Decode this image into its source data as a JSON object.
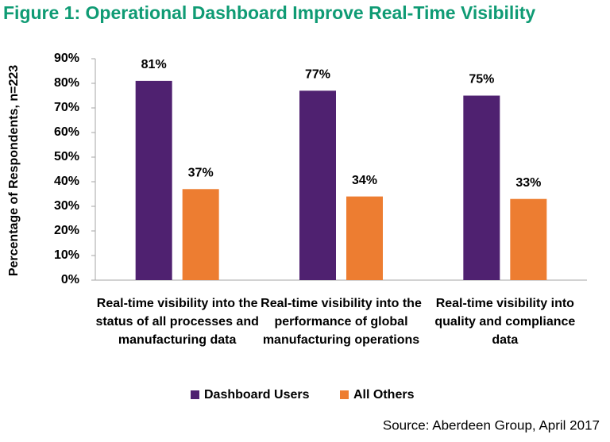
{
  "chart_data": {
    "type": "bar",
    "title": "Figure 1: Operational Dashboard Improve Real-Time Visibility",
    "y_label": "Percentage of Respondents, n=223",
    "source": "Source: Aberdeen Group, April 2017",
    "categories": [
      "Real-time visibility into the status of all processes and manufacturing data",
      "Real-time visibility into the performance of global manufacturing operations",
      "Real-time visibility into quality and compliance data"
    ],
    "series": [
      {
        "name": "Dashboard Users",
        "color": "#4f2170",
        "values": [
          81,
          77,
          75
        ],
        "value_labels": [
          "81%",
          "77%",
          "75%"
        ]
      },
      {
        "name": "All Others",
        "color": "#ed7d31",
        "values": [
          37,
          34,
          33
        ],
        "value_labels": [
          "37%",
          "34%",
          "33%"
        ]
      }
    ],
    "ylim": [
      0,
      90
    ],
    "yticks": [
      {
        "value": 0,
        "label": "0%"
      },
      {
        "value": 10,
        "label": "10%"
      },
      {
        "value": 20,
        "label": "20%"
      },
      {
        "value": 30,
        "label": "30%"
      },
      {
        "value": 40,
        "label": "40%"
      },
      {
        "value": 50,
        "label": "50%"
      },
      {
        "value": 60,
        "label": "60%"
      },
      {
        "value": 70,
        "label": "70%"
      },
      {
        "value": 80,
        "label": "80%"
      },
      {
        "value": 90,
        "label": "90%"
      }
    ],
    "legend": "bottom"
  }
}
